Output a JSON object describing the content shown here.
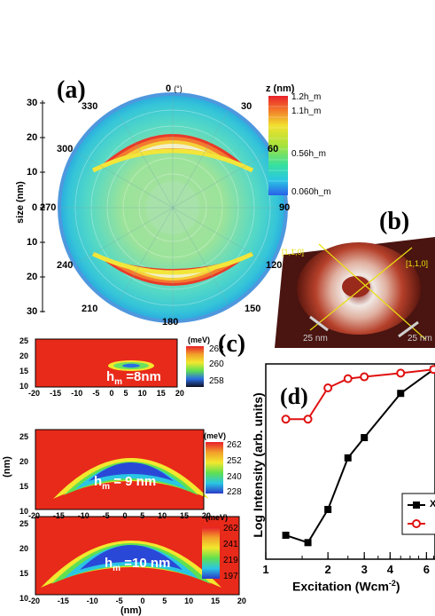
{
  "panel_a": {
    "label": "(a)",
    "angle_unit": "(°)",
    "angles": [
      "0",
      "30",
      "60",
      "90",
      "120",
      "150",
      "180",
      "210",
      "240",
      "270",
      "300",
      "330"
    ],
    "y_axis_label": "size (nm)",
    "y_ticks_top": [
      "30",
      "20",
      "10",
      "0"
    ],
    "y_ticks_bottom": [
      "10",
      "20",
      "30"
    ],
    "colorbar_title": "z (nm)",
    "colorbar_labels": [
      "1.2h_m",
      "1.1h_m",
      "0.56h_m",
      "0.060h_m"
    ]
  },
  "panel_b": {
    "label": "(b)",
    "dir1": "[1,1̄,0]",
    "dir2": "[1,1,0]",
    "scale1": "25 nm",
    "scale2": "25 nm"
  },
  "panel_c": {
    "label": "(c)",
    "y_axis_label": "(nm)",
    "x_axis_label": "(nm)",
    "x_ticks": [
      "-20",
      "-15",
      "-10",
      "-5",
      "0",
      "5",
      "10",
      "15",
      "20"
    ],
    "y_ticks": [
      "25",
      "20",
      "15",
      "10"
    ],
    "subplots": [
      {
        "h_label": "h_m =8nm",
        "cb_title": "(meV)",
        "cb_labels": [
          "262",
          "260",
          "258"
        ]
      },
      {
        "h_label": "h_m = 9 nm",
        "cb_title": "(meV)",
        "cb_labels": [
          "262",
          "252",
          "240",
          "228"
        ]
      },
      {
        "h_label": "h_m =10 nm",
        "cb_title": "(meV)",
        "cb_labels": [
          "262",
          "241",
          "219",
          "197"
        ]
      }
    ]
  },
  "chart_data": {
    "type": "line",
    "title": "(d)",
    "xlabel": "Excitation (Wcm-2)",
    "ylabel": "Log Intensity (arb. units)",
    "x_tick_labels": [
      "1",
      "2",
      "3",
      "4",
      "6"
    ],
    "x_scale": "log",
    "legend_placement": "right",
    "series": [
      {
        "name": "X",
        "color": "#000000",
        "marker": "square",
        "x": [
          1.25,
          1.6,
          2.0,
          2.5,
          3.0,
          4.5,
          6.5
        ],
        "y": [
          0.13,
          0.09,
          0.27,
          0.55,
          0.66,
          0.9,
          1.03
        ]
      },
      {
        "name": "",
        "color": "#e01010",
        "marker": "circle",
        "x": [
          1.25,
          1.6,
          2.0,
          2.5,
          3.0,
          4.5,
          6.5
        ],
        "y": [
          0.76,
          0.76,
          0.93,
          0.98,
          0.99,
          1.01,
          1.03
        ]
      }
    ]
  }
}
